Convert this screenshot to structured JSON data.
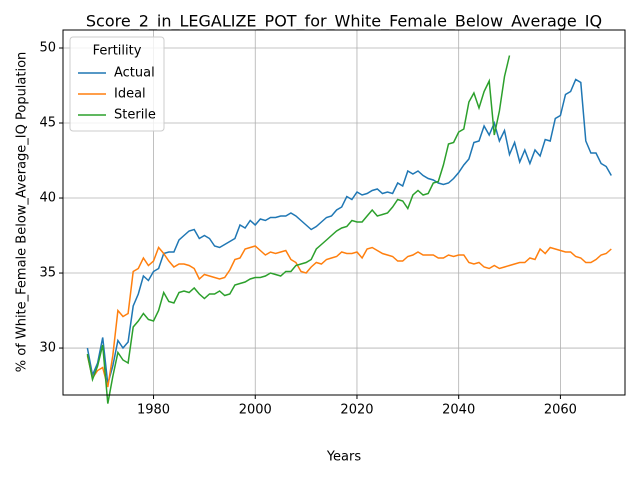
{
  "chart_data": {
    "type": "line",
    "title": "Score_2_in_LEGALIZE_POT_for_White_Female_Below_Average_IQ",
    "xlabel": "Years",
    "ylabel": "% of White_Female Below_Average_IQ Population",
    "legend_title": "Fertility",
    "legend": "upper left",
    "grid": true,
    "xlim": [
      1962.2,
      2072.7
    ],
    "ylim": [
      26.87,
      51.2
    ],
    "xticks": [
      1980,
      2000,
      2020,
      2040,
      2060
    ],
    "yticks": [
      30,
      35,
      40,
      45,
      50
    ],
    "x": [
      1967,
      1968,
      1969,
      1970,
      1971,
      1972,
      1973,
      1974,
      1975,
      1976,
      1977,
      1978,
      1979,
      1980,
      1981,
      1982,
      1983,
      1984,
      1985,
      1986,
      1987,
      1988,
      1989,
      1990,
      1991,
      1992,
      1993,
      1994,
      1995,
      1996,
      1997,
      1998,
      1999,
      2000,
      2001,
      2002,
      2003,
      2004,
      2005,
      2006,
      2007,
      2008,
      2009,
      2010,
      2011,
      2012,
      2013,
      2014,
      2015,
      2016,
      2017,
      2018,
      2019,
      2020,
      2021,
      2022,
      2023,
      2024,
      2025,
      2026,
      2027,
      2028,
      2029,
      2030,
      2031,
      2032,
      2033,
      2034,
      2035,
      2036,
      2037,
      2038,
      2039,
      2040,
      2041,
      2042,
      2043,
      2044,
      2045,
      2046,
      2047,
      2048,
      2049,
      2050,
      2051,
      2052,
      2053,
      2054,
      2055,
      2056,
      2057,
      2058,
      2059,
      2060,
      2061,
      2062,
      2063,
      2064,
      2065,
      2066,
      2067,
      2068,
      2069,
      2070
    ],
    "series": [
      {
        "name": "Actual",
        "color": "#1f77b4",
        "values": [
          30.0,
          28.2,
          29.0,
          30.7,
          27.6,
          28.8,
          30.5,
          30.0,
          30.4,
          32.8,
          33.6,
          34.8,
          34.5,
          35.1,
          35.3,
          36.3,
          36.4,
          36.4,
          37.2,
          37.5,
          37.8,
          37.9,
          37.3,
          37.5,
          37.3,
          36.8,
          36.7,
          36.9,
          37.1,
          37.3,
          38.2,
          38.0,
          38.5,
          38.2,
          38.6,
          38.5,
          38.7,
          38.7,
          38.8,
          38.8,
          39.0,
          38.8,
          38.5,
          38.2,
          37.9,
          38.1,
          38.4,
          38.7,
          38.8,
          39.2,
          39.4,
          40.1,
          39.9,
          40.4,
          40.2,
          40.3,
          40.5,
          40.6,
          40.3,
          40.4,
          40.3,
          41.0,
          40.8,
          41.8,
          41.6,
          41.8,
          41.5,
          41.3,
          41.2,
          41.0,
          40.9,
          41.0,
          41.3,
          41.7,
          42.2,
          42.6,
          43.7,
          43.8,
          44.8,
          44.2,
          45.0,
          43.8,
          44.5,
          42.9,
          43.7,
          42.4,
          43.2,
          42.3,
          43.2,
          42.8,
          43.9,
          43.8,
          45.3,
          45.5,
          46.9,
          47.1,
          47.9,
          47.7,
          43.8,
          43.0,
          43.0,
          42.3,
          42.1,
          41.5
        ]
      },
      {
        "name": "Ideal",
        "color": "#ff7f0e",
        "values": [
          29.5,
          28.0,
          28.5,
          28.7,
          27.4,
          29.5,
          32.5,
          32.1,
          32.3,
          35.1,
          35.3,
          36.0,
          35.5,
          35.8,
          36.7,
          36.3,
          35.8,
          35.4,
          35.6,
          35.6,
          35.5,
          35.3,
          34.6,
          34.9,
          34.8,
          34.7,
          34.6,
          34.7,
          35.2,
          35.9,
          36.0,
          36.6,
          36.7,
          36.8,
          36.5,
          36.2,
          36.4,
          36.3,
          36.4,
          36.5,
          35.9,
          35.7,
          35.1,
          35.0,
          35.4,
          35.7,
          35.6,
          35.9,
          36.0,
          36.1,
          36.4,
          36.3,
          36.3,
          36.4,
          36.0,
          36.6,
          36.7,
          36.5,
          36.3,
          36.2,
          36.1,
          35.8,
          35.8,
          36.1,
          36.2,
          36.4,
          36.2,
          36.2,
          36.2,
          36.0,
          36.0,
          36.2,
          36.1,
          36.2,
          36.2,
          35.7,
          35.6,
          35.7,
          35.4,
          35.3,
          35.5,
          35.3,
          35.4,
          35.5,
          35.6,
          35.7,
          35.7,
          36.0,
          35.9,
          36.6,
          36.3,
          36.7,
          36.6,
          36.5,
          36.4,
          36.4,
          36.1,
          36.0,
          35.7,
          35.7,
          35.9,
          36.2,
          36.3,
          36.6
        ]
      },
      {
        "name": "Sterile",
        "color": "#2ca02c",
        "values": [
          29.6,
          27.9,
          28.8,
          30.2,
          26.3,
          28.1,
          29.7,
          29.2,
          29.0,
          31.4,
          31.8,
          32.3,
          31.9,
          31.8,
          32.5,
          33.7,
          33.1,
          33.0,
          33.7,
          33.8,
          33.7,
          34.0,
          33.6,
          33.3,
          33.6,
          33.6,
          33.8,
          33.5,
          33.6,
          34.2,
          34.3,
          34.4,
          34.6,
          34.7,
          34.7,
          34.8,
          35.0,
          34.9,
          34.8,
          35.1,
          35.1,
          35.5,
          35.6,
          35.7,
          35.9,
          36.6,
          36.9,
          37.2,
          37.5,
          37.8,
          38.0,
          38.1,
          38.5,
          38.4,
          38.4,
          38.8,
          39.2,
          38.8,
          38.9,
          39.0,
          39.4,
          39.9,
          39.8,
          39.3,
          40.2,
          40.5,
          40.2,
          40.3,
          41.0,
          41.1,
          42.2,
          43.6,
          43.7,
          44.4,
          44.6,
          46.4,
          47.0,
          46.0,
          47.1,
          47.8,
          44.2,
          45.8,
          48.1,
          49.5,
          null,
          null,
          null,
          null,
          null,
          null,
          null,
          null,
          null,
          null,
          null,
          null,
          null,
          null,
          null,
          null,
          null,
          null,
          null,
          null
        ]
      }
    ]
  }
}
